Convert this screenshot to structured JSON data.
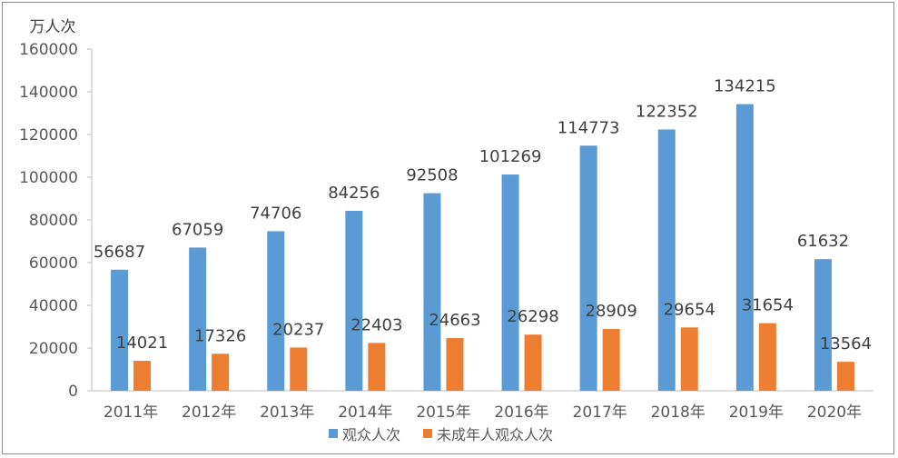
{
  "chart_data": {
    "type": "bar",
    "unit_label": "万人次",
    "categories": [
      "2011年",
      "2012年",
      "2013年",
      "2014年",
      "2015年",
      "2016年",
      "2017年",
      "2018年",
      "2019年",
      "2020年"
    ],
    "series": [
      {
        "name": "观众人次",
        "color": "#5b9bd5",
        "values": [
          56687,
          67059,
          74706,
          84256,
          92508,
          101269,
          114773,
          122352,
          134215,
          61632
        ]
      },
      {
        "name": "未成年人观众人次",
        "color": "#ed7d31",
        "values": [
          14021,
          17326,
          20237,
          22403,
          24663,
          26298,
          28909,
          29654,
          31654,
          13564
        ]
      }
    ],
    "ylim": [
      0,
      160000
    ],
    "yticks": [
      0,
      20000,
      40000,
      60000,
      80000,
      100000,
      120000,
      140000,
      160000
    ],
    "grid": false,
    "legend": "bottom"
  }
}
